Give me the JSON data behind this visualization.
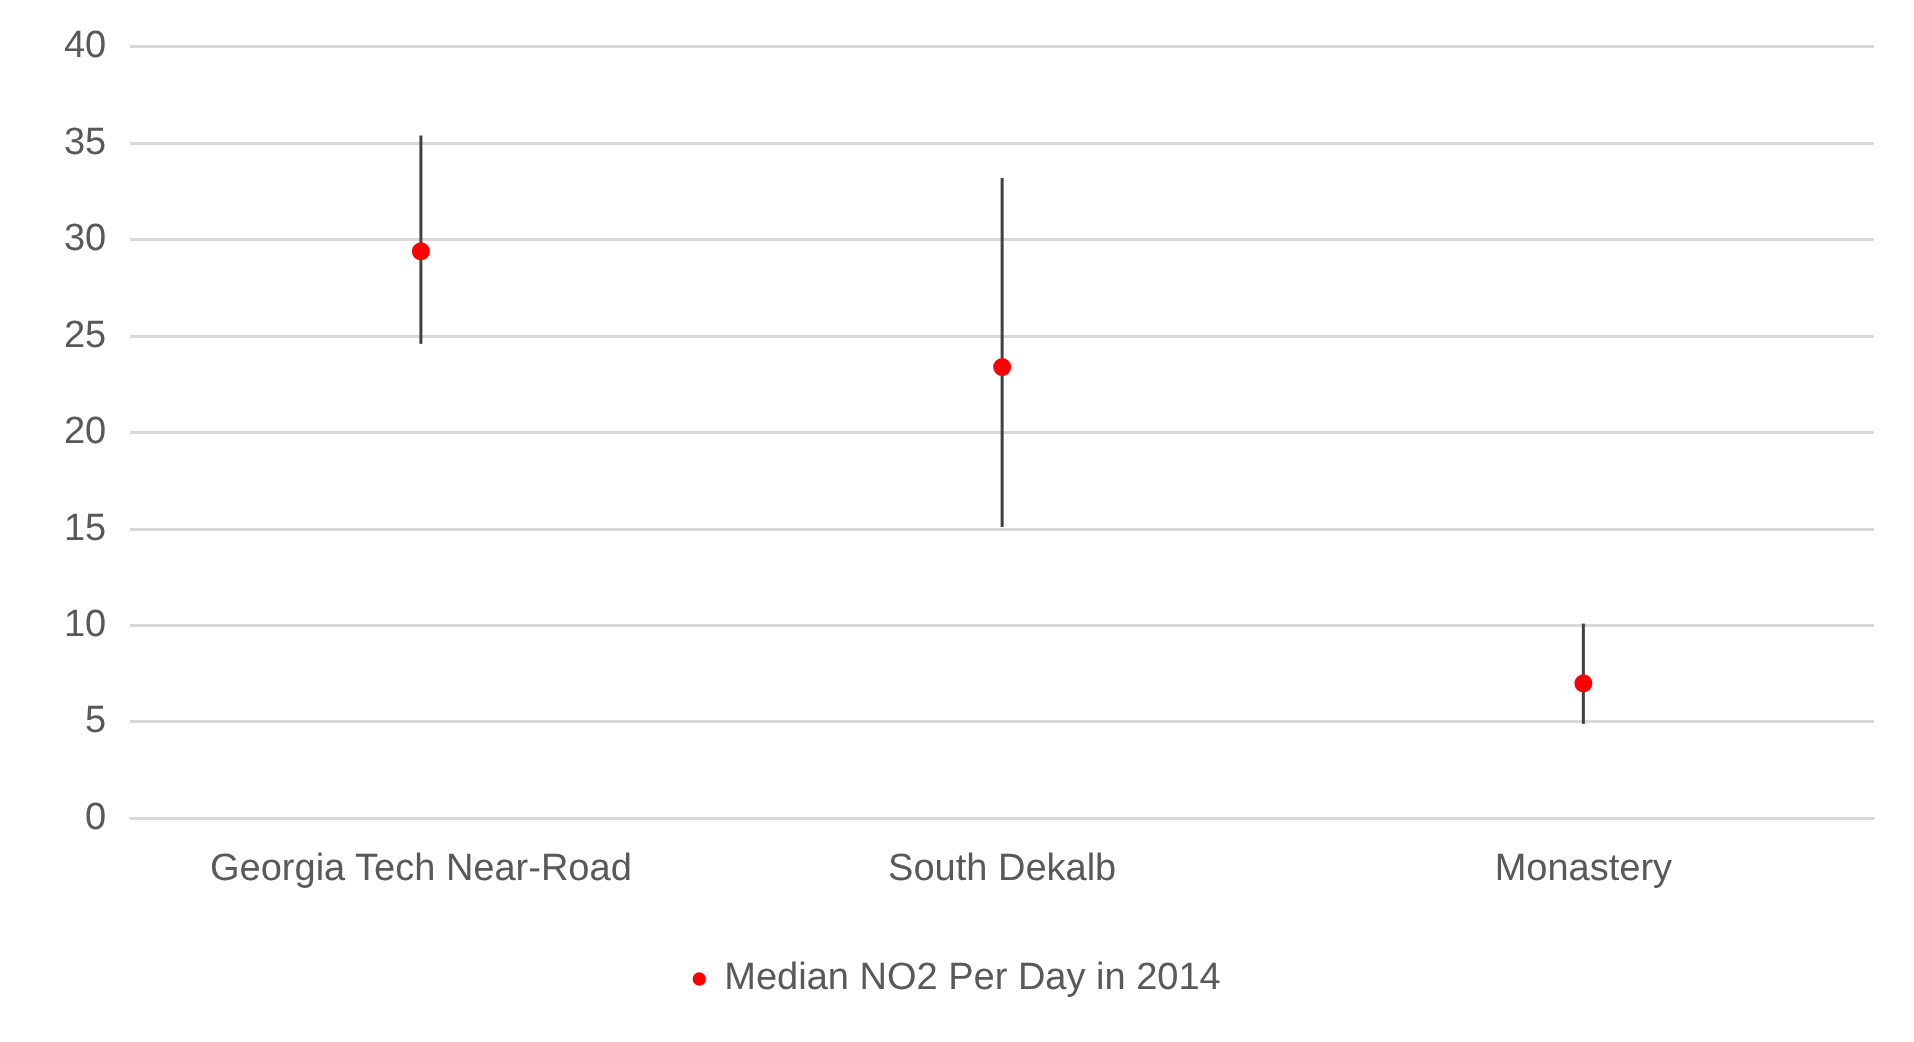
{
  "chart_data": {
    "type": "scatter",
    "categories": [
      "Georgia Tech Near-Road",
      "South Dekalb",
      "Monastery"
    ],
    "series": [
      {
        "name": "Median NO2 Per Day in 2014",
        "color": "#ff0000",
        "values": [
          29.4,
          23.4,
          7.0
        ],
        "errors": [
          [
            24.6,
            35.4
          ],
          [
            15.1,
            33.2
          ],
          [
            4.9,
            10.1
          ]
        ]
      }
    ],
    "ylim": [
      0,
      40
    ],
    "yticks": [
      0,
      5,
      10,
      15,
      20,
      25,
      30,
      35,
      40
    ],
    "grid": "y",
    "legend": "bottom",
    "marker": "circle"
  }
}
